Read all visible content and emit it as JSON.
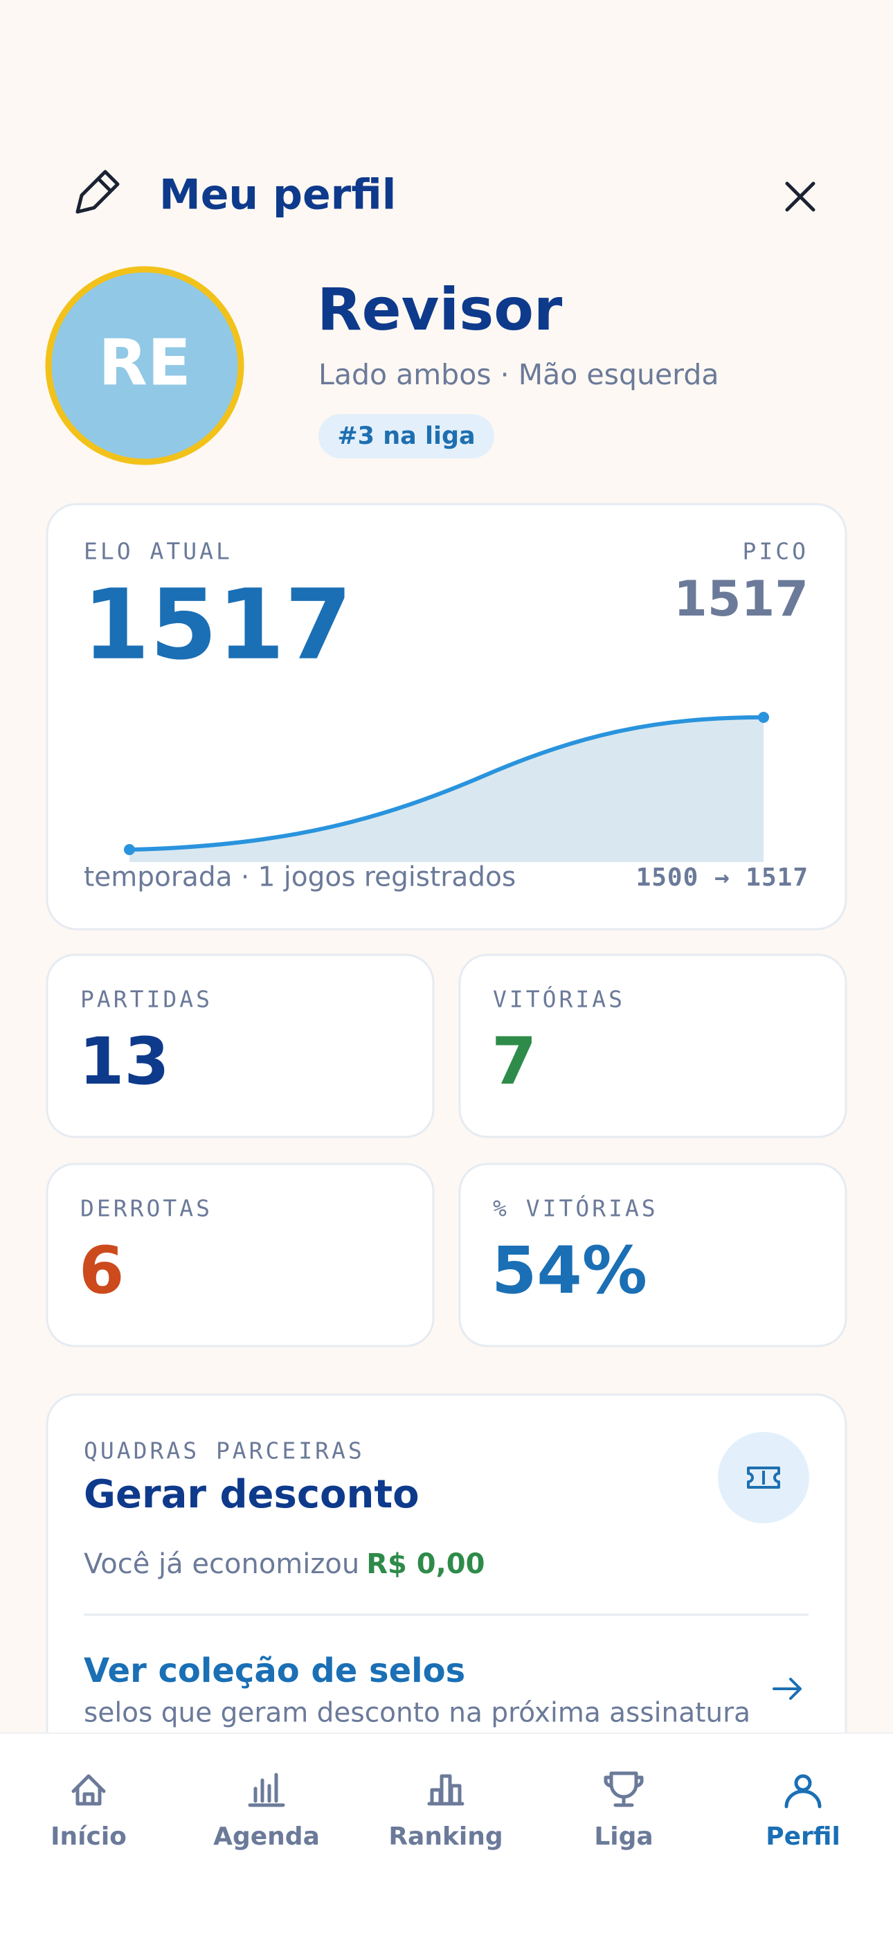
{
  "header": {
    "title": "Meu perfil"
  },
  "profile": {
    "initials": "RE",
    "name": "Revisor",
    "subtitle": "Lado ambos · Mão esquerda",
    "rank": "#3 na liga"
  },
  "elo": {
    "label": "ELO ATUAL",
    "value": "1517",
    "peak_label": "PICO",
    "peak_value": "1517",
    "footer": "temporada · 1 jogos registrados",
    "range": "1500 → 1517"
  },
  "stats": [
    {
      "label": "PARTIDAS",
      "value": "13"
    },
    {
      "label": "VITÓRIAS",
      "value": "7"
    },
    {
      "label": "DERROTAS",
      "value": "6"
    },
    {
      "label": "% VITÓRIAS",
      "value": "54%"
    }
  ],
  "partners": {
    "label": "QUADRAS PARCEIRAS",
    "title": "Gerar desconto",
    "savings_text": "Você já economizou",
    "savings_amount": "R$ 0,00",
    "link_title": "Ver coleção de selos",
    "link_subtitle": "selos que geram desconto na próxima assinatura"
  },
  "nav": [
    {
      "label": "Início"
    },
    {
      "label": "Agenda"
    },
    {
      "label": "Ranking"
    },
    {
      "label": "Liga"
    },
    {
      "label": "Perfil"
    }
  ]
}
